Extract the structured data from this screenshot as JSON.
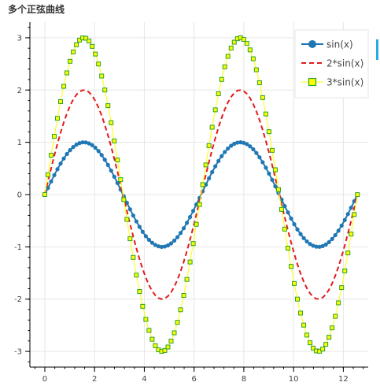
{
  "chart_data": {
    "type": "line",
    "title": "多个正弦曲线",
    "xlabel": "",
    "ylabel": "",
    "xlim": [
      -0.6,
      13.0
    ],
    "ylim": [
      -3.3,
      3.3
    ],
    "x_ticks": [
      0,
      2,
      4,
      6,
      8,
      10,
      12
    ],
    "y_ticks": [
      -3,
      -2,
      -1,
      0,
      1,
      2,
      3
    ],
    "grid": true,
    "legend_position": "top-right",
    "x_range": [
      0,
      12.566
    ],
    "n_points": 100,
    "series": [
      {
        "name": "sin(x)",
        "amplitude": 1,
        "style": "solid-circle",
        "line_color": "#1f77b4",
        "marker_color": "#1f77b4"
      },
      {
        "name": "2*sin(x)",
        "amplitude": 2,
        "style": "dashed",
        "line_color": "#e31a1c"
      },
      {
        "name": "3*sin(x)",
        "amplitude": 3,
        "style": "square",
        "line_color": "#ffff00",
        "marker_color": "#2ca02c",
        "marker_fill": "#ffff00"
      }
    ]
  }
}
